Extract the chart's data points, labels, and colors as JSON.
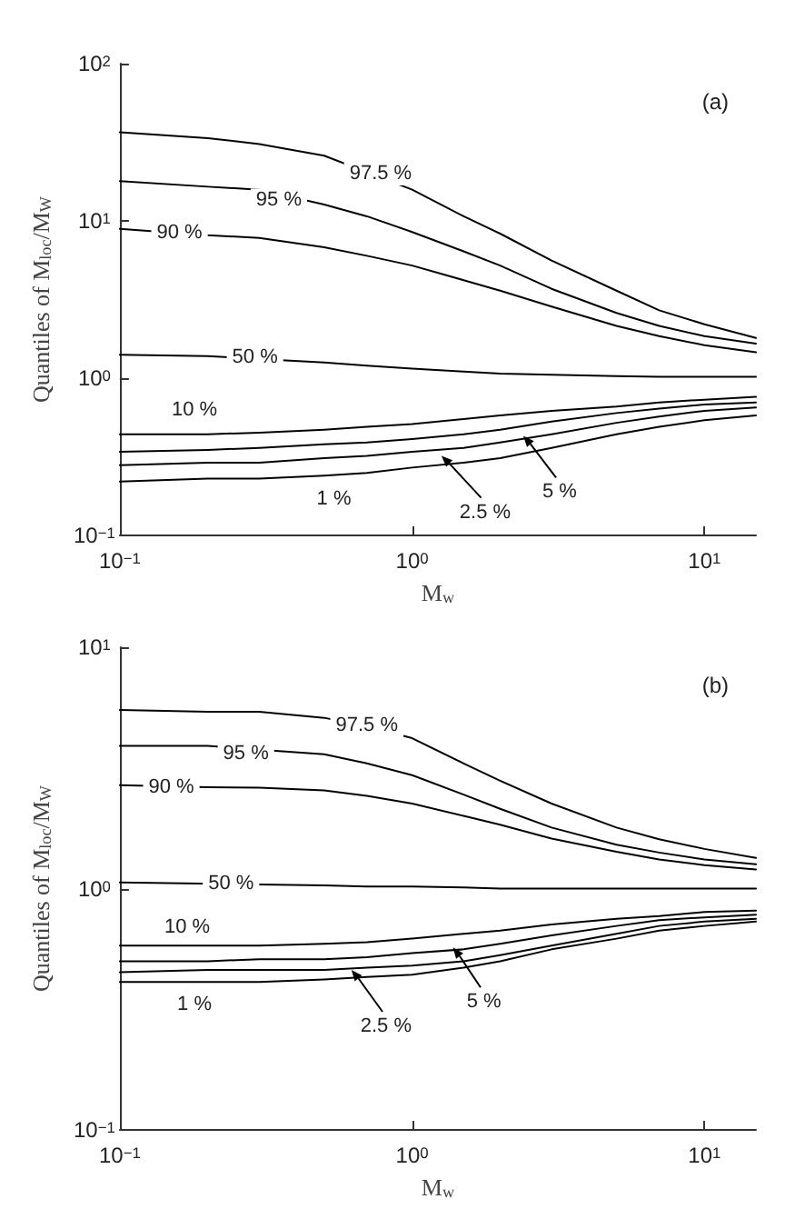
{
  "chart_data": [
    {
      "type": "line",
      "title": "(a)",
      "xlabel": "M$_{w}$",
      "ylabel": "Quantiles of M$_{loc}$/M$_{W}$",
      "log": "xy",
      "marker": "none",
      "line_style": "solid",
      "grid": false,
      "xlim": [
        0.1,
        15
      ],
      "ylim": [
        0.1,
        100
      ],
      "xticks": [
        {
          "value": 0.1,
          "label": "10$^{−1}$"
        },
        {
          "value": 1,
          "label": "10$^{0}$"
        },
        {
          "value": 10,
          "label": "10$^{1}$"
        }
      ],
      "yticks": [
        {
          "value": 0.1,
          "label": "10$^{−1}$"
        },
        {
          "value": 1,
          "label": "10$^{0}$"
        },
        {
          "value": 10,
          "label": "10$^{1}$"
        },
        {
          "value": 100,
          "label": "10$^{2}$"
        }
      ],
      "x": [
        0.1,
        0.2,
        0.3,
        0.5,
        0.7,
        1,
        1.5,
        2,
        3,
        5,
        7,
        10,
        15
      ],
      "series": [
        {
          "color": "#000000",
          "x": [
            0.1,
            0.2,
            0.3,
            0.5,
            1,
            1.5,
            2,
            3,
            5,
            7,
            10,
            15
          ],
          "values": [
            36.6,
            33.6,
            30.8,
            26,
            15.8,
            10.7,
            8.3,
            5.6,
            3.6,
            2.7,
            2.2,
            1.8
          ]
        },
        {
          "color": "#000000",
          "values": [
            17.9,
            16.5,
            15.8,
            12.7,
            10.7,
            8.5,
            6.4,
            5.2,
            3.7,
            2.6,
            2.15,
            1.85,
            1.66
          ]
        },
        {
          "color": "#000000",
          "values": [
            8.9,
            8.1,
            7.8,
            6.8,
            6,
            5.2,
            4.2,
            3.6,
            2.85,
            2.15,
            1.85,
            1.62,
            1.46
          ]
        },
        {
          "color": "#000000",
          "x": [
            0.1,
            0.2,
            0.5,
            0.7,
            1,
            1.5,
            2,
            3,
            5,
            7,
            10,
            15
          ],
          "values": [
            1.41,
            1.38,
            1.26,
            1.2,
            1.15,
            1.1,
            1.07,
            1.05,
            1.03,
            1.02,
            1.02,
            1.02
          ]
        },
        {
          "color": "#000000",
          "values": [
            0.44,
            0.44,
            0.45,
            0.47,
            0.49,
            0.51,
            0.55,
            0.58,
            0.62,
            0.66,
            0.7,
            0.73,
            0.76
          ]
        },
        {
          "color": "#000000",
          "values": [
            0.34,
            0.35,
            0.36,
            0.38,
            0.39,
            0.41,
            0.44,
            0.47,
            0.53,
            0.6,
            0.64,
            0.68,
            0.7
          ]
        },
        {
          "color": "#000000",
          "values": [
            0.28,
            0.29,
            0.29,
            0.31,
            0.32,
            0.34,
            0.36,
            0.39,
            0.44,
            0.52,
            0.57,
            0.62,
            0.65
          ]
        },
        {
          "color": "#000000",
          "values": [
            0.22,
            0.23,
            0.23,
            0.24,
            0.25,
            0.27,
            0.29,
            0.31,
            0.36,
            0.44,
            0.49,
            0.54,
            0.58
          ]
        }
      ],
      "annotations": [
        {
          "text": "97.5 %",
          "x": 0.78,
          "y": 20
        },
        {
          "text": "95 %",
          "x": 0.35,
          "y": 13.5
        },
        {
          "text": "90 %",
          "x": 0.16,
          "y": 8.4
        },
        {
          "text": "50 %",
          "x": 0.29,
          "y": 1.36
        },
        {
          "text": "10 %",
          "x": 0.18,
          "y": 0.63
        },
        {
          "text": "1 %",
          "x": 0.54,
          "y": 0.17
        },
        {
          "text": "2.5 %",
          "x": 1.26,
          "y": 0.32
        },
        {
          "text": "5 %",
          "x": 2.4,
          "y": 0.43
        }
      ]
    },
    {
      "type": "line",
      "title": "(b)",
      "xlabel": "M$_{w}$",
      "ylabel": "Quantiles of M$_{loc}$/M$_{W}$",
      "log": "xy",
      "marker": "none",
      "line_style": "solid",
      "grid": false,
      "xlim": [
        0.1,
        15
      ],
      "ylim": [
        0.1,
        10
      ],
      "xticks": [
        {
          "value": 0.1,
          "label": "10$^{−1}$"
        },
        {
          "value": 1,
          "label": "10$^{0}$"
        },
        {
          "value": 10,
          "label": "10$^{1}$"
        }
      ],
      "yticks": [
        {
          "value": 0.1,
          "label": "10$^{−1}$"
        },
        {
          "value": 1,
          "label": "10$^{0}$"
        },
        {
          "value": 10,
          "label": "10$^{1}$"
        }
      ],
      "x": [
        0.1,
        0.2,
        0.3,
        0.5,
        0.7,
        1,
        1.5,
        2,
        3,
        5,
        7,
        10,
        15
      ],
      "series": [
        {
          "color": "#000000",
          "values": [
            5.5,
            5.4,
            5.4,
            5.1,
            4.7,
            4.2,
            3.3,
            2.8,
            2.25,
            1.79,
            1.6,
            1.46,
            1.34
          ]
        },
        {
          "color": "#000000",
          "x": [
            0.1,
            0.2,
            0.5,
            0.7,
            1,
            1.5,
            2,
            3,
            5,
            7,
            10,
            15
          ],
          "values": [
            3.9,
            3.9,
            3.6,
            3.3,
            2.95,
            2.45,
            2.14,
            1.79,
            1.52,
            1.41,
            1.32,
            1.26
          ]
        },
        {
          "color": "#000000",
          "values": [
            2.68,
            2.63,
            2.62,
            2.55,
            2.42,
            2.25,
            2,
            1.84,
            1.61,
            1.42,
            1.32,
            1.25,
            1.2
          ]
        },
        {
          "color": "#000000",
          "x": [
            0.1,
            0.3,
            0.5,
            0.7,
            1,
            1.5,
            2,
            3,
            5,
            7,
            10,
            15
          ],
          "values": [
            1.06,
            1.04,
            1.03,
            1.02,
            1.02,
            1.01,
            1,
            1,
            1,
            1,
            1,
            1
          ]
        },
        {
          "color": "#000000",
          "values": [
            0.58,
            0.58,
            0.58,
            0.59,
            0.6,
            0.62,
            0.65,
            0.67,
            0.71,
            0.75,
            0.77,
            0.8,
            0.81
          ]
        },
        {
          "color": "#000000",
          "values": [
            0.5,
            0.5,
            0.51,
            0.51,
            0.52,
            0.54,
            0.56,
            0.59,
            0.64,
            0.7,
            0.74,
            0.76,
            0.78
          ]
        },
        {
          "color": "#000000",
          "values": [
            0.45,
            0.46,
            0.46,
            0.46,
            0.47,
            0.48,
            0.5,
            0.53,
            0.58,
            0.65,
            0.7,
            0.73,
            0.75
          ]
        },
        {
          "color": "#000000",
          "values": [
            0.41,
            0.41,
            0.41,
            0.42,
            0.43,
            0.44,
            0.47,
            0.5,
            0.56,
            0.62,
            0.67,
            0.7,
            0.73
          ]
        }
      ],
      "annotations": [
        {
          "text": "97.5 %",
          "x": 0.7,
          "y": 4.75
        },
        {
          "text": "95 %",
          "x": 0.27,
          "y": 3.64
        },
        {
          "text": "90 %",
          "x": 0.15,
          "y": 2.63
        },
        {
          "text": "50 %",
          "x": 0.24,
          "y": 1.05
        },
        {
          "text": "10 %",
          "x": 0.17,
          "y": 0.69
        },
        {
          "text": "1 %",
          "x": 0.18,
          "y": 0.33
        },
        {
          "text": "2.5 %",
          "x": 0.62,
          "y": 0.46
        },
        {
          "text": "5 %",
          "x": 1.38,
          "y": 0.57
        }
      ]
    }
  ]
}
